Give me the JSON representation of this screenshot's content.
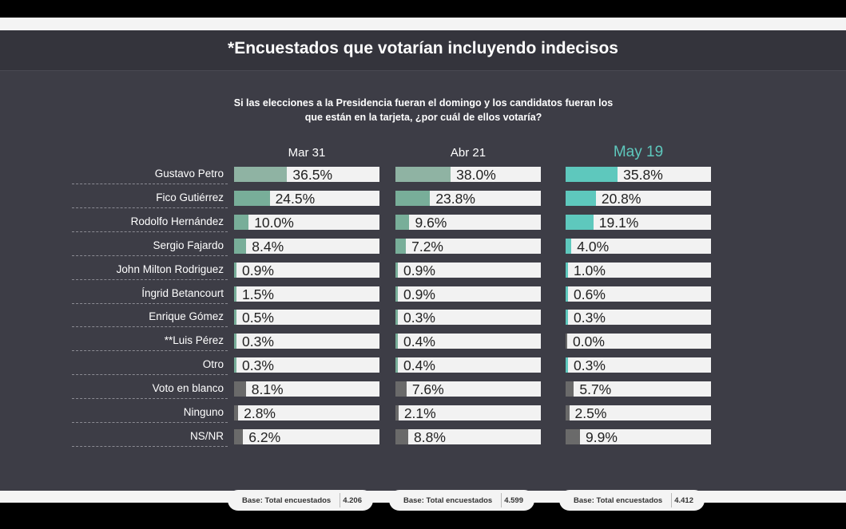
{
  "header": {
    "title": "*Encuestados que votarían incluyendo indecisos"
  },
  "question": {
    "line1": "Si las elecciones a la Presidencia fueran el domingo y los candidatos  fueran los",
    "line2": "que están en la tarjeta, ¿por cuál de ellos votaría?"
  },
  "colors": {
    "green_light": "#8fb3a3",
    "green_mid": "#78ae99",
    "teal": "#5ec8bd",
    "grey": "#6a6a6a",
    "panel": "#3d3d46"
  },
  "chart_data": {
    "type": "bar",
    "orientation": "horizontal",
    "categories": [
      "Gustavo Petro",
      "Fico Gutiérrez",
      "Rodolfo Hernández",
      "Sergio Fajardo",
      "John Milton Rodriguez",
      "Íngrid Betancourt",
      "Enrique Gómez",
      "**Luis Pérez",
      "Otro",
      "Voto en blanco",
      "Ninguno",
      "NS/NR"
    ],
    "series": [
      {
        "name": "Mar 31",
        "values": [
          36.5,
          24.5,
          10.0,
          8.4,
          0.9,
          1.5,
          0.5,
          0.3,
          0.3,
          8.1,
          2.8,
          6.2
        ],
        "labels": [
          "36.5%",
          "24.5%",
          "10.0%",
          "8.4%",
          "0.9%",
          "1.5%",
          "0.5%",
          "0.3%",
          "0.3%",
          "8.1%",
          "2.8%",
          "6.2%"
        ],
        "base_label": "Base: Total encuestados",
        "base_value": "4.206"
      },
      {
        "name": "Abr 21",
        "values": [
          38.0,
          23.8,
          9.6,
          7.2,
          0.9,
          0.9,
          0.3,
          0.4,
          0.4,
          7.6,
          2.1,
          8.8
        ],
        "labels": [
          "38.0%",
          "23.8%",
          "9.6%",
          "7.2%",
          "0.9%",
          "0.9%",
          "0.3%",
          "0.4%",
          "0.4%",
          "7.6%",
          "2.1%",
          "8.8%"
        ],
        "base_label": "Base: Total encuestados",
        "base_value": "4.599"
      },
      {
        "name": "May 19",
        "values": [
          35.8,
          20.8,
          19.1,
          4.0,
          1.0,
          0.6,
          0.3,
          0.0,
          0.3,
          5.7,
          2.5,
          9.9
        ],
        "labels": [
          "35.8%",
          "20.8%",
          "19.1%",
          "4.0%",
          "1.0%",
          "0.6%",
          "0.3%",
          "0.0%",
          "0.3%",
          "5.7%",
          "2.5%",
          "9.9%"
        ],
        "base_label": "Base: Total encuestados",
        "base_value": "4.412",
        "highlight": true
      }
    ],
    "xlim": [
      0,
      100
    ],
    "grid": false,
    "legend": "none"
  }
}
